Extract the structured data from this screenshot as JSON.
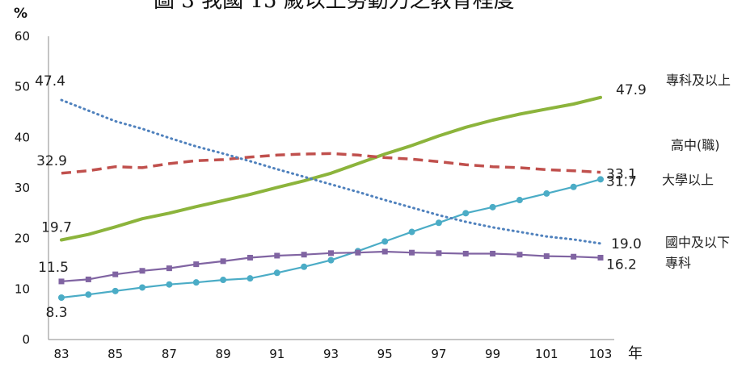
{
  "chart_data": {
    "type": "line",
    "title": "圖 3  我國 15 歲以上勞動力之教育程度",
    "ylabel": "%",
    "xlabel": "年",
    "ylim": [
      0,
      60
    ],
    "yticks": [
      "0",
      "10",
      "20",
      "30",
      "40",
      "50",
      "60"
    ],
    "xlim": [
      83,
      103
    ],
    "xticks": [
      "83",
      "85",
      "87",
      "89",
      "91",
      "93",
      "95",
      "97",
      "99",
      "101",
      "103"
    ],
    "x": [
      83,
      84,
      85,
      86,
      87,
      88,
      89,
      90,
      91,
      92,
      93,
      94,
      95,
      96,
      97,
      98,
      99,
      100,
      101,
      102,
      103
    ],
    "grid": false,
    "series": [
      {
        "name": "專科及以上",
        "color": "#8cb43c",
        "style": "solid",
        "values": [
          19.7,
          20.8,
          22.3,
          23.9,
          25.0,
          26.3,
          27.5,
          28.7,
          30.1,
          31.4,
          32.9,
          34.8,
          36.7,
          38.4,
          40.3,
          42.0,
          43.4,
          44.6,
          45.6,
          46.6,
          47.9
        ],
        "start_label": "19.7",
        "end_label": "47.9"
      },
      {
        "name": "高中(職)",
        "color": "#c0504d",
        "style": "dashed",
        "values": [
          32.9,
          33.4,
          34.2,
          34.0,
          34.8,
          35.4,
          35.6,
          36.1,
          36.5,
          36.7,
          36.8,
          36.5,
          36.0,
          35.7,
          35.2,
          34.6,
          34.2,
          34.0,
          33.6,
          33.4,
          33.1
        ],
        "start_label": "32.9",
        "end_label": "33.1"
      },
      {
        "name": "大學以上",
        "color": "#4bacc6",
        "style": "solid-circle",
        "values": [
          8.3,
          8.9,
          9.6,
          10.3,
          10.9,
          11.3,
          11.8,
          12.1,
          13.2,
          14.4,
          15.7,
          17.5,
          19.4,
          21.3,
          23.1,
          25.0,
          26.2,
          27.6,
          28.9,
          30.2,
          31.7
        ],
        "start_label": "8.3",
        "end_label": "31.7"
      },
      {
        "name": "國中及以下",
        "color": "#4f81bd",
        "style": "dotted",
        "values": [
          47.4,
          45.3,
          43.2,
          41.7,
          39.9,
          38.2,
          36.8,
          35.3,
          33.7,
          32.2,
          30.7,
          29.2,
          27.6,
          26.1,
          24.6,
          23.3,
          22.2,
          21.3,
          20.4,
          19.8,
          19.0
        ],
        "start_label": "47.4",
        "end_label": "19.0"
      },
      {
        "name": "專科",
        "color": "#8064a2",
        "style": "solid-square",
        "values": [
          11.5,
          11.9,
          12.9,
          13.6,
          14.1,
          14.9,
          15.5,
          16.2,
          16.6,
          16.8,
          17.1,
          17.2,
          17.4,
          17.2,
          17.1,
          17.0,
          17.0,
          16.8,
          16.5,
          16.4,
          16.2
        ],
        "start_label": "11.5",
        "end_label": "16.2"
      }
    ]
  }
}
